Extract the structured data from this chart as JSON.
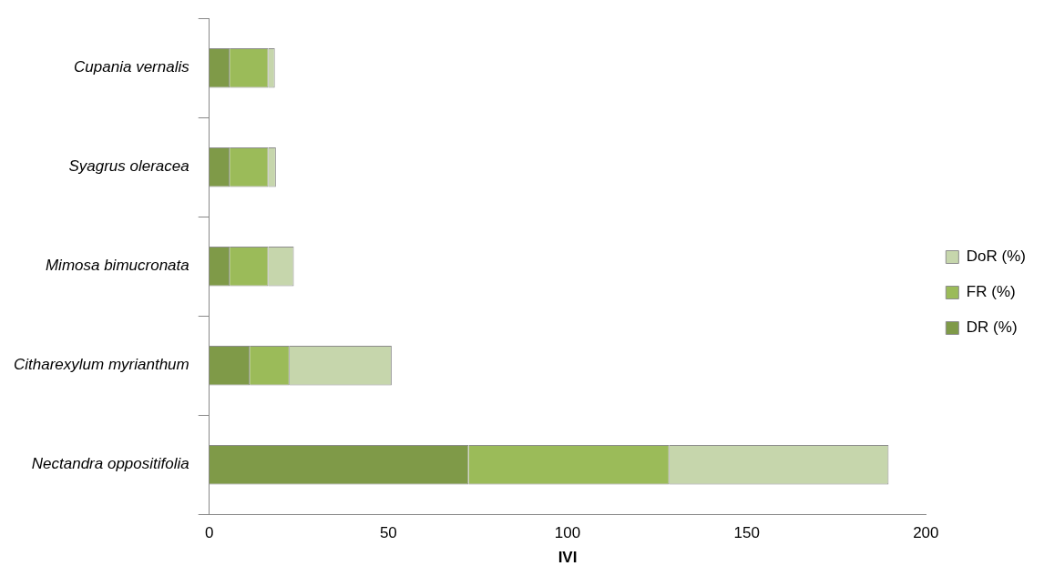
{
  "chart_data": {
    "type": "bar",
    "orientation": "horizontal",
    "stacked": true,
    "xlabel": "IVI",
    "categories": [
      "Cupania vernalis",
      "Syagrus oleracea",
      "Mimosa bimucronata",
      "Citharexylum myrianthum",
      "Nectandra oppositifolia"
    ],
    "series": [
      {
        "name": "DR (%)",
        "color": "#7f9a48",
        "values": [
          5.7,
          5.7,
          5.7,
          11.3,
          72.4
        ]
      },
      {
        "name": "FR (%)",
        "color": "#9bbb59",
        "values": [
          10.8,
          10.8,
          10.8,
          11.1,
          56.0
        ]
      },
      {
        "name": "DoR (%)",
        "color": "#c6d6ac",
        "values": [
          1.8,
          2.1,
          7.1,
          28.5,
          61.2
        ]
      }
    ],
    "xlim": [
      0,
      200
    ],
    "xticks": [
      0,
      50,
      100,
      150,
      200
    ],
    "grid": false,
    "legend": "right"
  }
}
